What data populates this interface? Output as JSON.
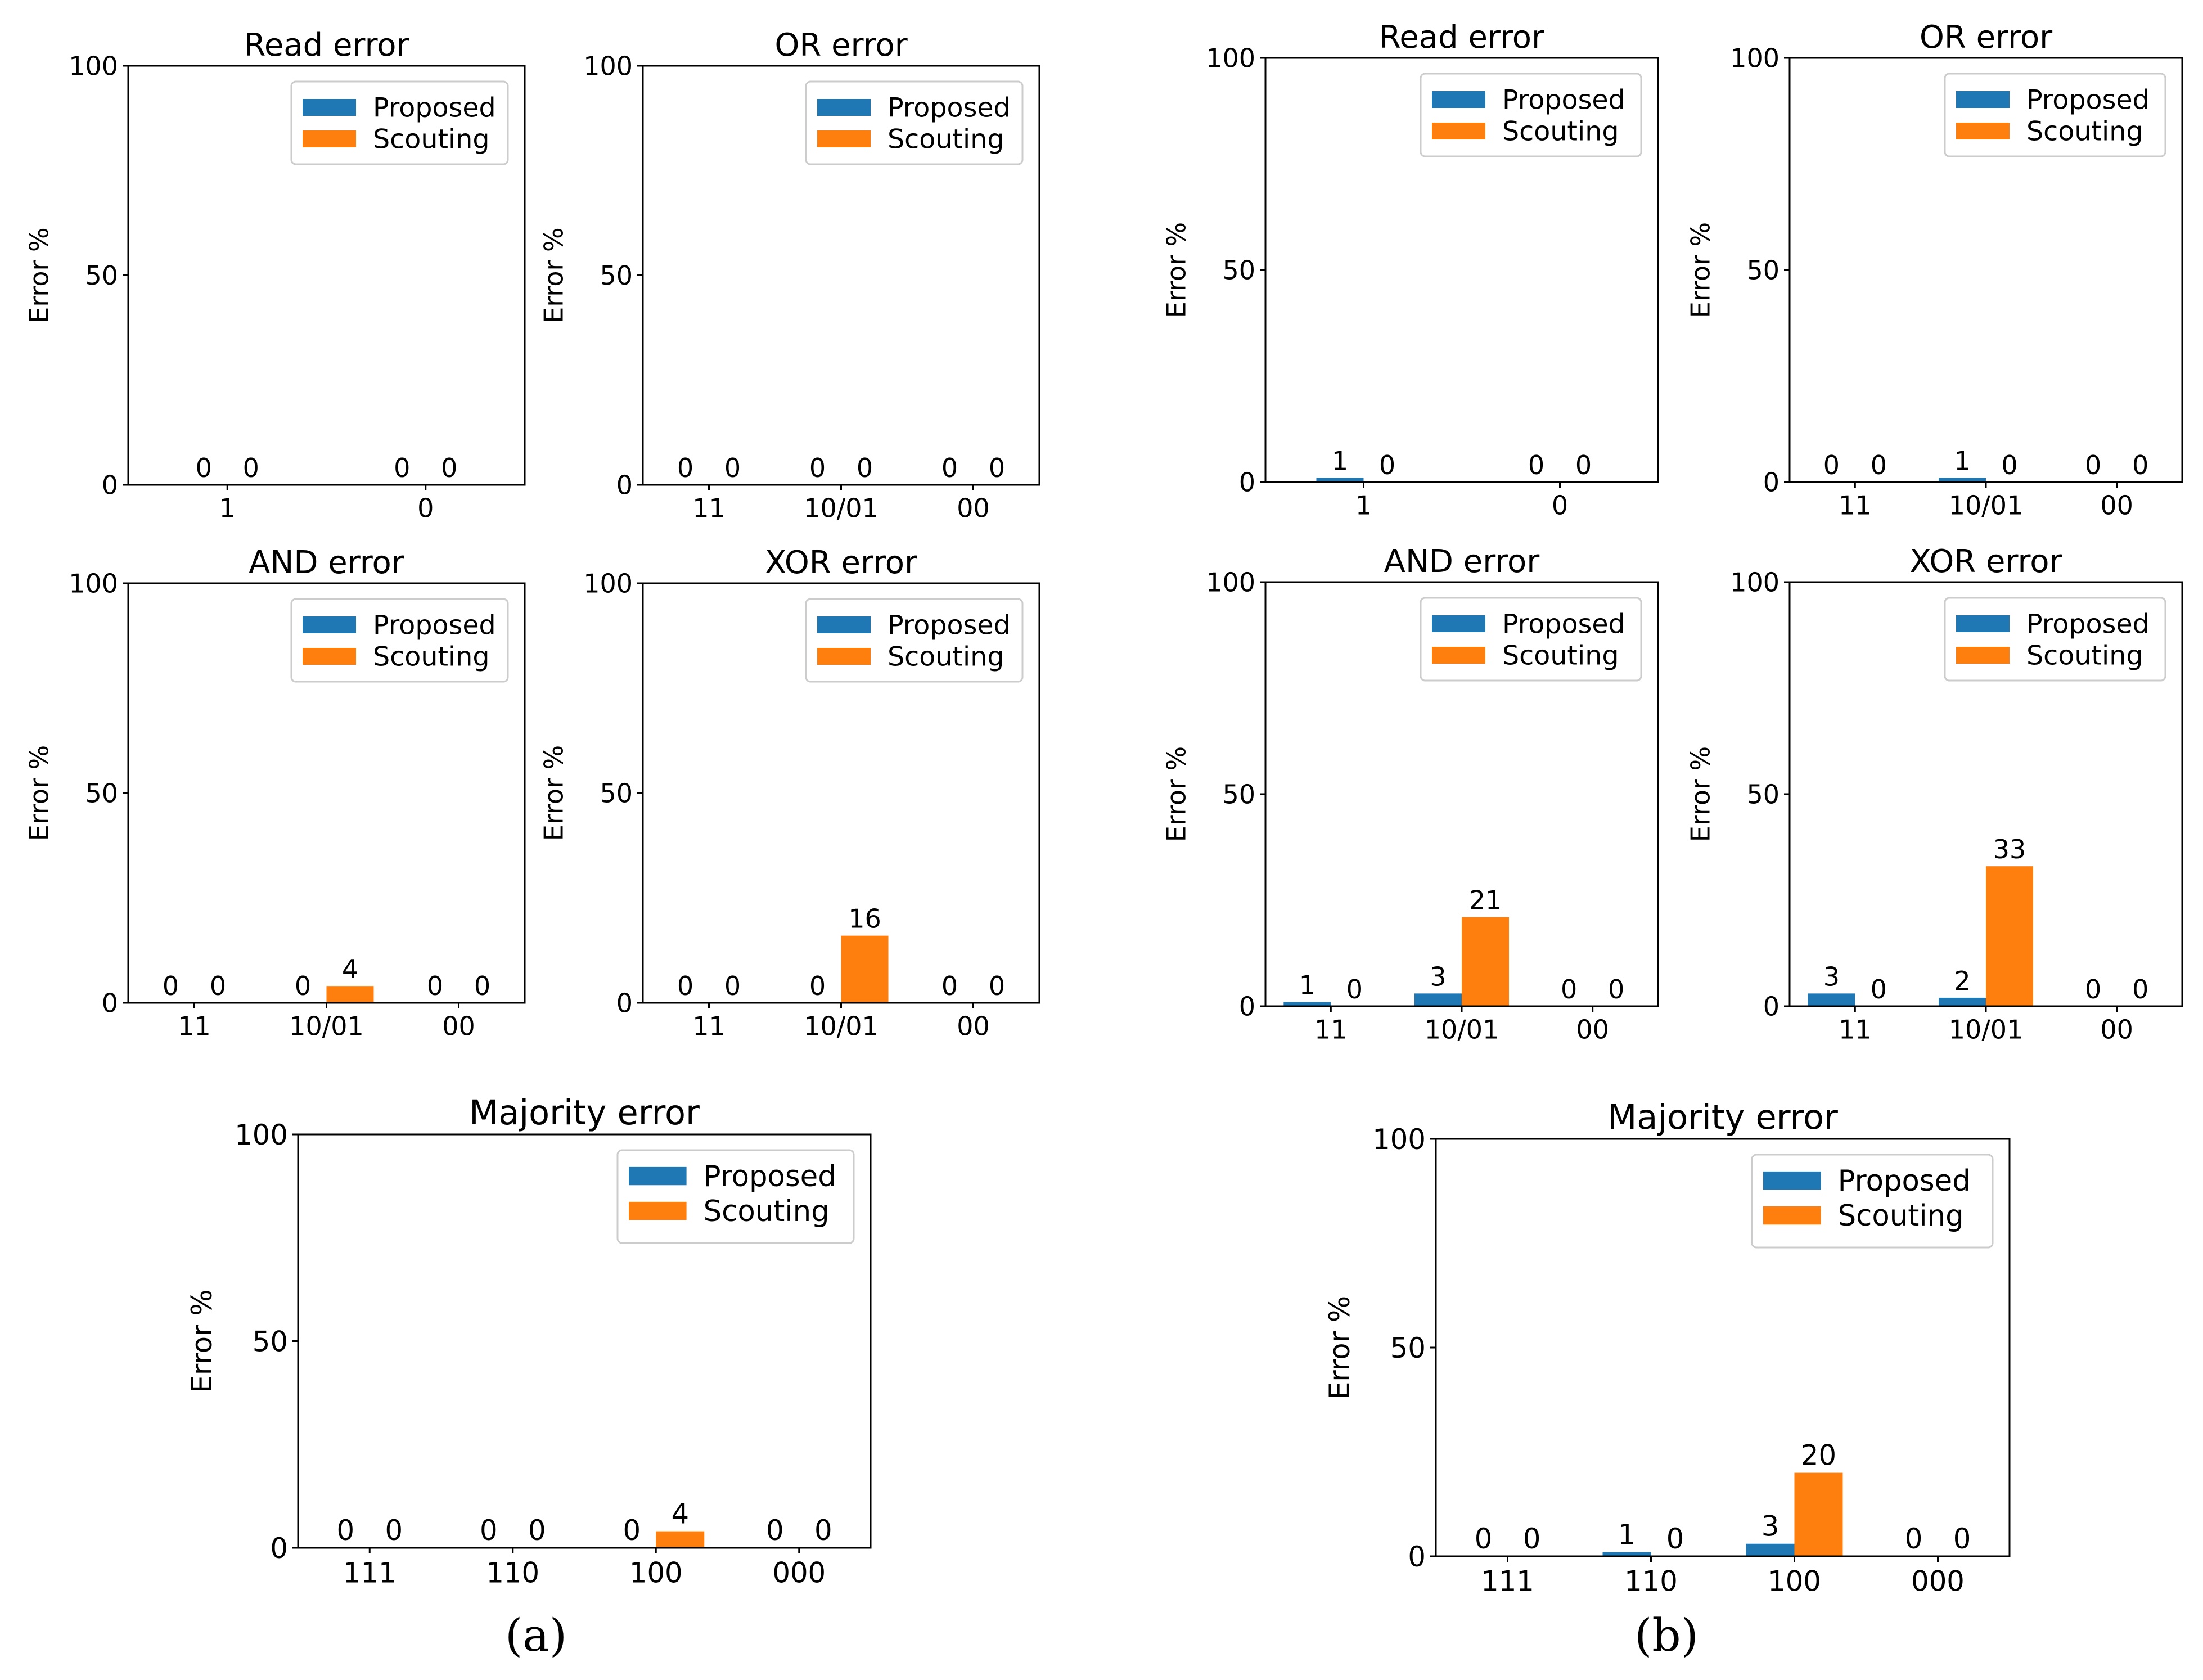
{
  "panel_labels": [
    "(a)",
    "(b)"
  ],
  "colors": {
    "proposed": "#1f77b4",
    "scouting": "#ff7f0e"
  },
  "chart_data": [
    {
      "id": "a-read",
      "type": "bar",
      "title": "Read error",
      "ylabel": "Error %",
      "ylim": [
        0,
        100
      ],
      "yticks": [
        "0",
        "50",
        "100"
      ],
      "categories": [
        "1",
        "0"
      ],
      "series": [
        {
          "name": "Proposed",
          "values": [
            0,
            0
          ],
          "labels": [
            "0",
            "0"
          ]
        },
        {
          "name": "Scouting",
          "values": [
            0,
            0
          ],
          "labels": [
            "0",
            "0"
          ]
        }
      ],
      "legend": "top-right"
    },
    {
      "id": "a-or",
      "type": "bar",
      "title": "OR error",
      "ylabel": "Error %",
      "ylim": [
        0,
        100
      ],
      "yticks": [
        "0",
        "50",
        "100"
      ],
      "categories": [
        "11",
        "10/01",
        "00"
      ],
      "series": [
        {
          "name": "Proposed",
          "values": [
            0,
            0,
            0
          ],
          "labels": [
            "0",
            "0",
            "0"
          ]
        },
        {
          "name": "Scouting",
          "values": [
            0,
            0,
            0
          ],
          "labels": [
            "0",
            "0",
            "0"
          ]
        }
      ],
      "legend": "top-right"
    },
    {
      "id": "a-and",
      "type": "bar",
      "title": "AND error",
      "ylabel": "Error %",
      "ylim": [
        0,
        100
      ],
      "yticks": [
        "0",
        "50",
        "100"
      ],
      "categories": [
        "11",
        "10/01",
        "00"
      ],
      "series": [
        {
          "name": "Proposed",
          "values": [
            0,
            0,
            0
          ],
          "labels": [
            "0",
            "0",
            "0"
          ]
        },
        {
          "name": "Scouting",
          "values": [
            0,
            4,
            0
          ],
          "labels": [
            "0",
            "4",
            "0"
          ]
        }
      ],
      "legend": "top-right"
    },
    {
      "id": "a-xor",
      "type": "bar",
      "title": "XOR error",
      "ylabel": "Error %",
      "ylim": [
        0,
        100
      ],
      "yticks": [
        "0",
        "50",
        "100"
      ],
      "categories": [
        "11",
        "10/01",
        "00"
      ],
      "series": [
        {
          "name": "Proposed",
          "values": [
            0,
            0,
            0
          ],
          "labels": [
            "0",
            "0",
            "0"
          ]
        },
        {
          "name": "Scouting",
          "values": [
            0,
            16,
            0
          ],
          "labels": [
            "0",
            "16",
            "0"
          ]
        }
      ],
      "legend": "top-right"
    },
    {
      "id": "a-maj",
      "type": "bar",
      "title": "Majority error",
      "ylabel": "Error %",
      "ylim": [
        0,
        100
      ],
      "yticks": [
        "0",
        "50",
        "100"
      ],
      "categories": [
        "111",
        "110",
        "100",
        "000"
      ],
      "series": [
        {
          "name": "Proposed",
          "values": [
            0,
            0,
            0,
            0
          ],
          "labels": [
            "0",
            "0",
            "0",
            "0"
          ]
        },
        {
          "name": "Scouting",
          "values": [
            0,
            0,
            4,
            0
          ],
          "labels": [
            "0",
            "0",
            "4",
            "0"
          ]
        }
      ],
      "legend": "top-right"
    },
    {
      "id": "b-read",
      "type": "bar",
      "title": "Read error",
      "ylabel": "Error %",
      "ylim": [
        0,
        100
      ],
      "yticks": [
        "0",
        "50",
        "100"
      ],
      "categories": [
        "1",
        "0"
      ],
      "series": [
        {
          "name": "Proposed",
          "values": [
            1,
            0
          ],
          "labels": [
            "1",
            "0"
          ]
        },
        {
          "name": "Scouting",
          "values": [
            0,
            0
          ],
          "labels": [
            "0",
            "0"
          ]
        }
      ],
      "legend": "top-right"
    },
    {
      "id": "b-or",
      "type": "bar",
      "title": "OR error",
      "ylabel": "Error %",
      "ylim": [
        0,
        100
      ],
      "yticks": [
        "0",
        "50",
        "100"
      ],
      "categories": [
        "11",
        "10/01",
        "00"
      ],
      "series": [
        {
          "name": "Proposed",
          "values": [
            0,
            1,
            0
          ],
          "labels": [
            "0",
            "1",
            "0"
          ]
        },
        {
          "name": "Scouting",
          "values": [
            0,
            0,
            0
          ],
          "labels": [
            "0",
            "0",
            "0"
          ]
        }
      ],
      "legend": "top-right"
    },
    {
      "id": "b-and",
      "type": "bar",
      "title": "AND error",
      "ylabel": "Error %",
      "ylim": [
        0,
        100
      ],
      "yticks": [
        "0",
        "50",
        "100"
      ],
      "categories": [
        "11",
        "10/01",
        "00"
      ],
      "series": [
        {
          "name": "Proposed",
          "values": [
            1,
            3,
            0
          ],
          "labels": [
            "1",
            "3",
            "0"
          ]
        },
        {
          "name": "Scouting",
          "values": [
            0,
            21,
            0
          ],
          "labels": [
            "0",
            "21",
            "0"
          ]
        }
      ],
      "legend": "top-right"
    },
    {
      "id": "b-xor",
      "type": "bar",
      "title": "XOR error",
      "ylabel": "Error %",
      "ylim": [
        0,
        100
      ],
      "yticks": [
        "0",
        "50",
        "100"
      ],
      "categories": [
        "11",
        "10/01",
        "00"
      ],
      "series": [
        {
          "name": "Proposed",
          "values": [
            3,
            2,
            0
          ],
          "labels": [
            "3",
            "2",
            "0"
          ]
        },
        {
          "name": "Scouting",
          "values": [
            0,
            33,
            0
          ],
          "labels": [
            "0",
            "33",
            "0"
          ]
        }
      ],
      "legend": "top-right"
    },
    {
      "id": "b-maj",
      "type": "bar",
      "title": "Majority error",
      "ylabel": "Error %",
      "ylim": [
        0,
        100
      ],
      "yticks": [
        "0",
        "50",
        "100"
      ],
      "categories": [
        "111",
        "110",
        "100",
        "000"
      ],
      "series": [
        {
          "name": "Proposed",
          "values": [
            0,
            1,
            3,
            0
          ],
          "labels": [
            "0",
            "1",
            "3",
            "0"
          ]
        },
        {
          "name": "Scouting",
          "values": [
            0,
            0,
            20,
            0
          ],
          "labels": [
            "0",
            "0",
            "20",
            "0"
          ]
        }
      ],
      "legend": "top-right"
    }
  ]
}
